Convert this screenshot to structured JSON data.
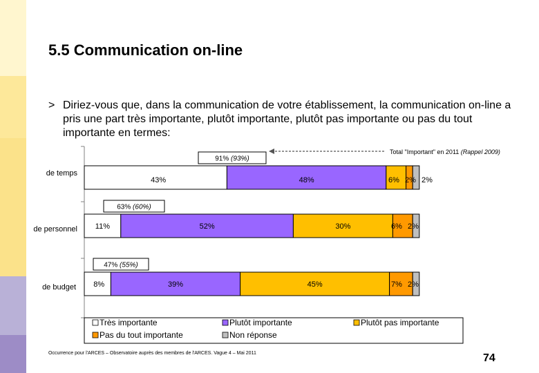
{
  "slide": {
    "title": "5.5 Communication on-line",
    "question_marker": ">",
    "question": "Diriez-vous que, dans la communication de votre établissement, la communication on-line a pris une part très importante, plutôt importante, plutôt pas importante ou pas du tout importante en termes:",
    "footnote": "Occurrence pour l'ARCES – Observatoire auprès des membres de l'ARCES. Vague 4 – Mai 2011",
    "page_number": "74"
  },
  "colors": {
    "sidebar": [
      "#fff6cf",
      "#fde89a",
      "#fbe28a",
      "#b9b1d7",
      "#9d8cc6"
    ],
    "tres_importante": "#ffffff",
    "plutot_importante": "#9966ff",
    "plutot_pas_importante": "#ffbf00",
    "pas_du_tout_importante": "#ff9900",
    "non_reponse": "#bfbfbf"
  },
  "chart_data": {
    "type": "bar",
    "orientation": "horizontal",
    "stacked": true,
    "xlim": [
      0,
      100
    ],
    "categories": [
      "de temps",
      "de personnel",
      "de budget"
    ],
    "series": [
      {
        "name": "Très importante",
        "values": [
          43,
          11,
          8
        ]
      },
      {
        "name": "Plutôt importante",
        "values": [
          48,
          52,
          39
        ]
      },
      {
        "name": "Plutôt pas importante",
        "values": [
          6,
          30,
          45
        ]
      },
      {
        "name": "Pas du tout importante",
        "values": [
          2,
          6,
          7
        ]
      },
      {
        "name": "Non réponse",
        "values": [
          2,
          2,
          2
        ]
      }
    ],
    "data_labels": [
      [
        "43%",
        "48%",
        "6%",
        "2%",
        "2%"
      ],
      [
        "11%",
        "52%",
        "30%",
        "6%",
        "2%"
      ],
      [
        "8%",
        "39%",
        "45%",
        "7%",
        "2%"
      ]
    ],
    "totals": [
      {
        "value": "91%",
        "previous": "(93%)"
      },
      {
        "value": "63%",
        "previous": "(60%)"
      },
      {
        "value": "47%",
        "previous": "(55%)"
      }
    ],
    "annotation": {
      "text": "Total \"Important\" en 2011",
      "note": "(Rappel 2009)"
    },
    "legend_position": "bottom",
    "grid": false
  }
}
